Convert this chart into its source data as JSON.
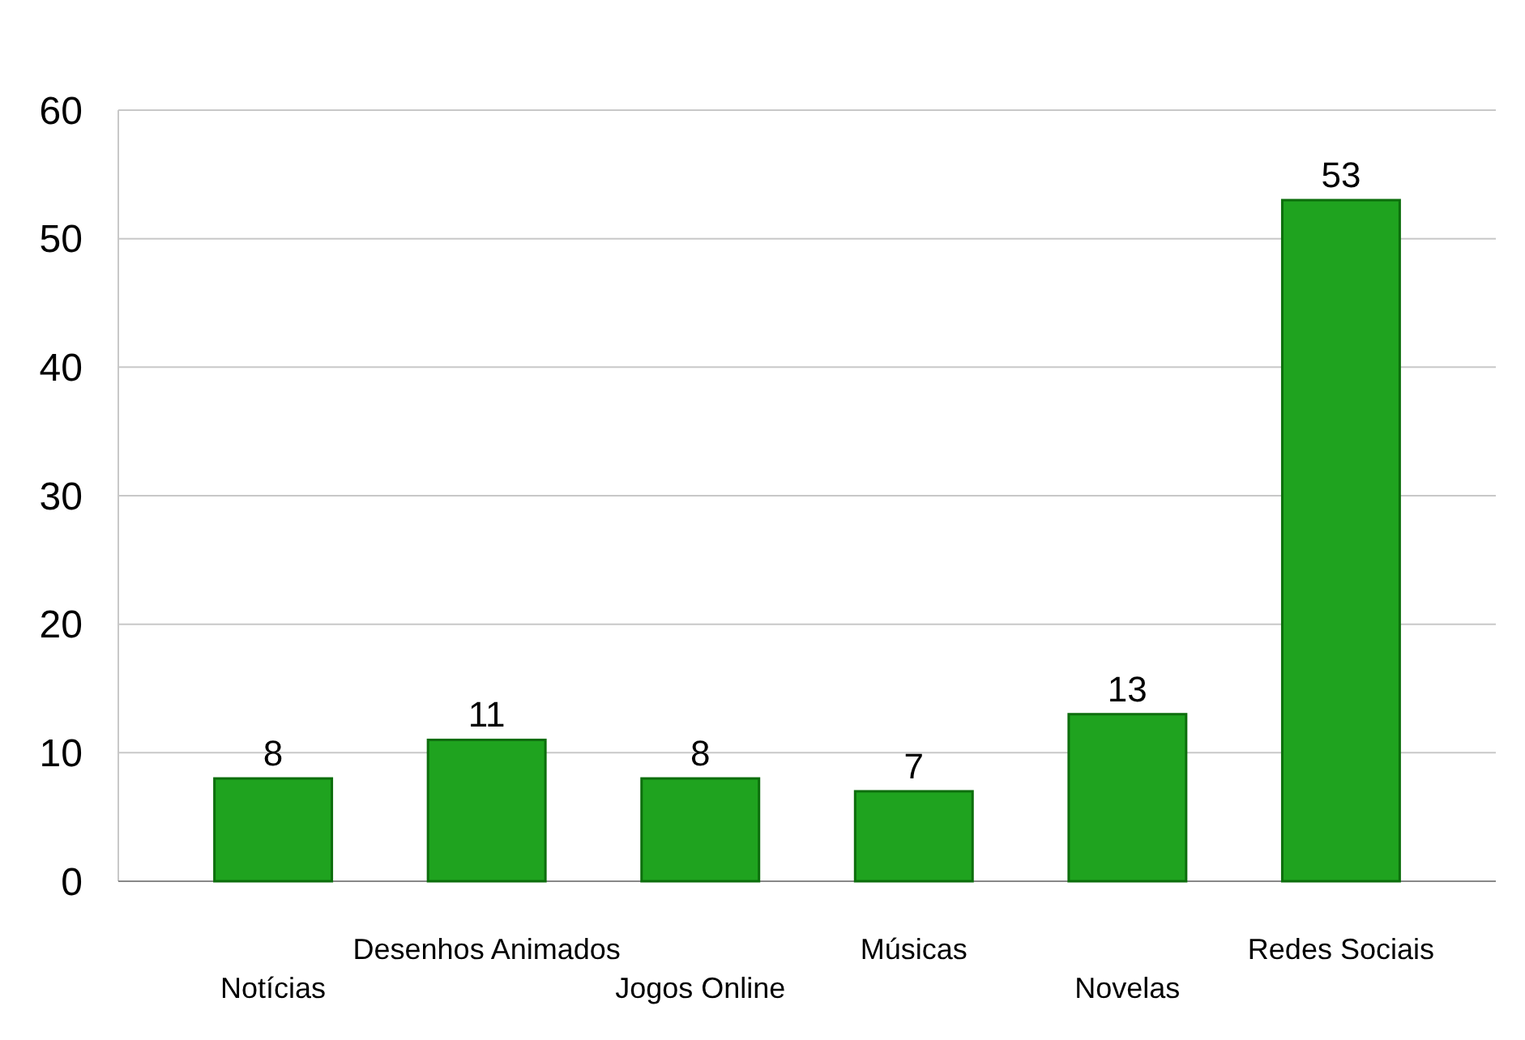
{
  "chart_data": {
    "type": "bar",
    "categories": [
      "Notícias",
      "Desenhos Animados",
      "Jogos Online",
      "Músicas",
      "Novelas",
      "Redes Sociais"
    ],
    "values": [
      8,
      11,
      8,
      7,
      13,
      53
    ],
    "color": "#1fa31f",
    "ylim": [
      0,
      60
    ],
    "yticks": [
      0,
      10,
      20,
      30,
      40,
      50,
      60
    ],
    "grid": "y",
    "data_labels": true
  }
}
